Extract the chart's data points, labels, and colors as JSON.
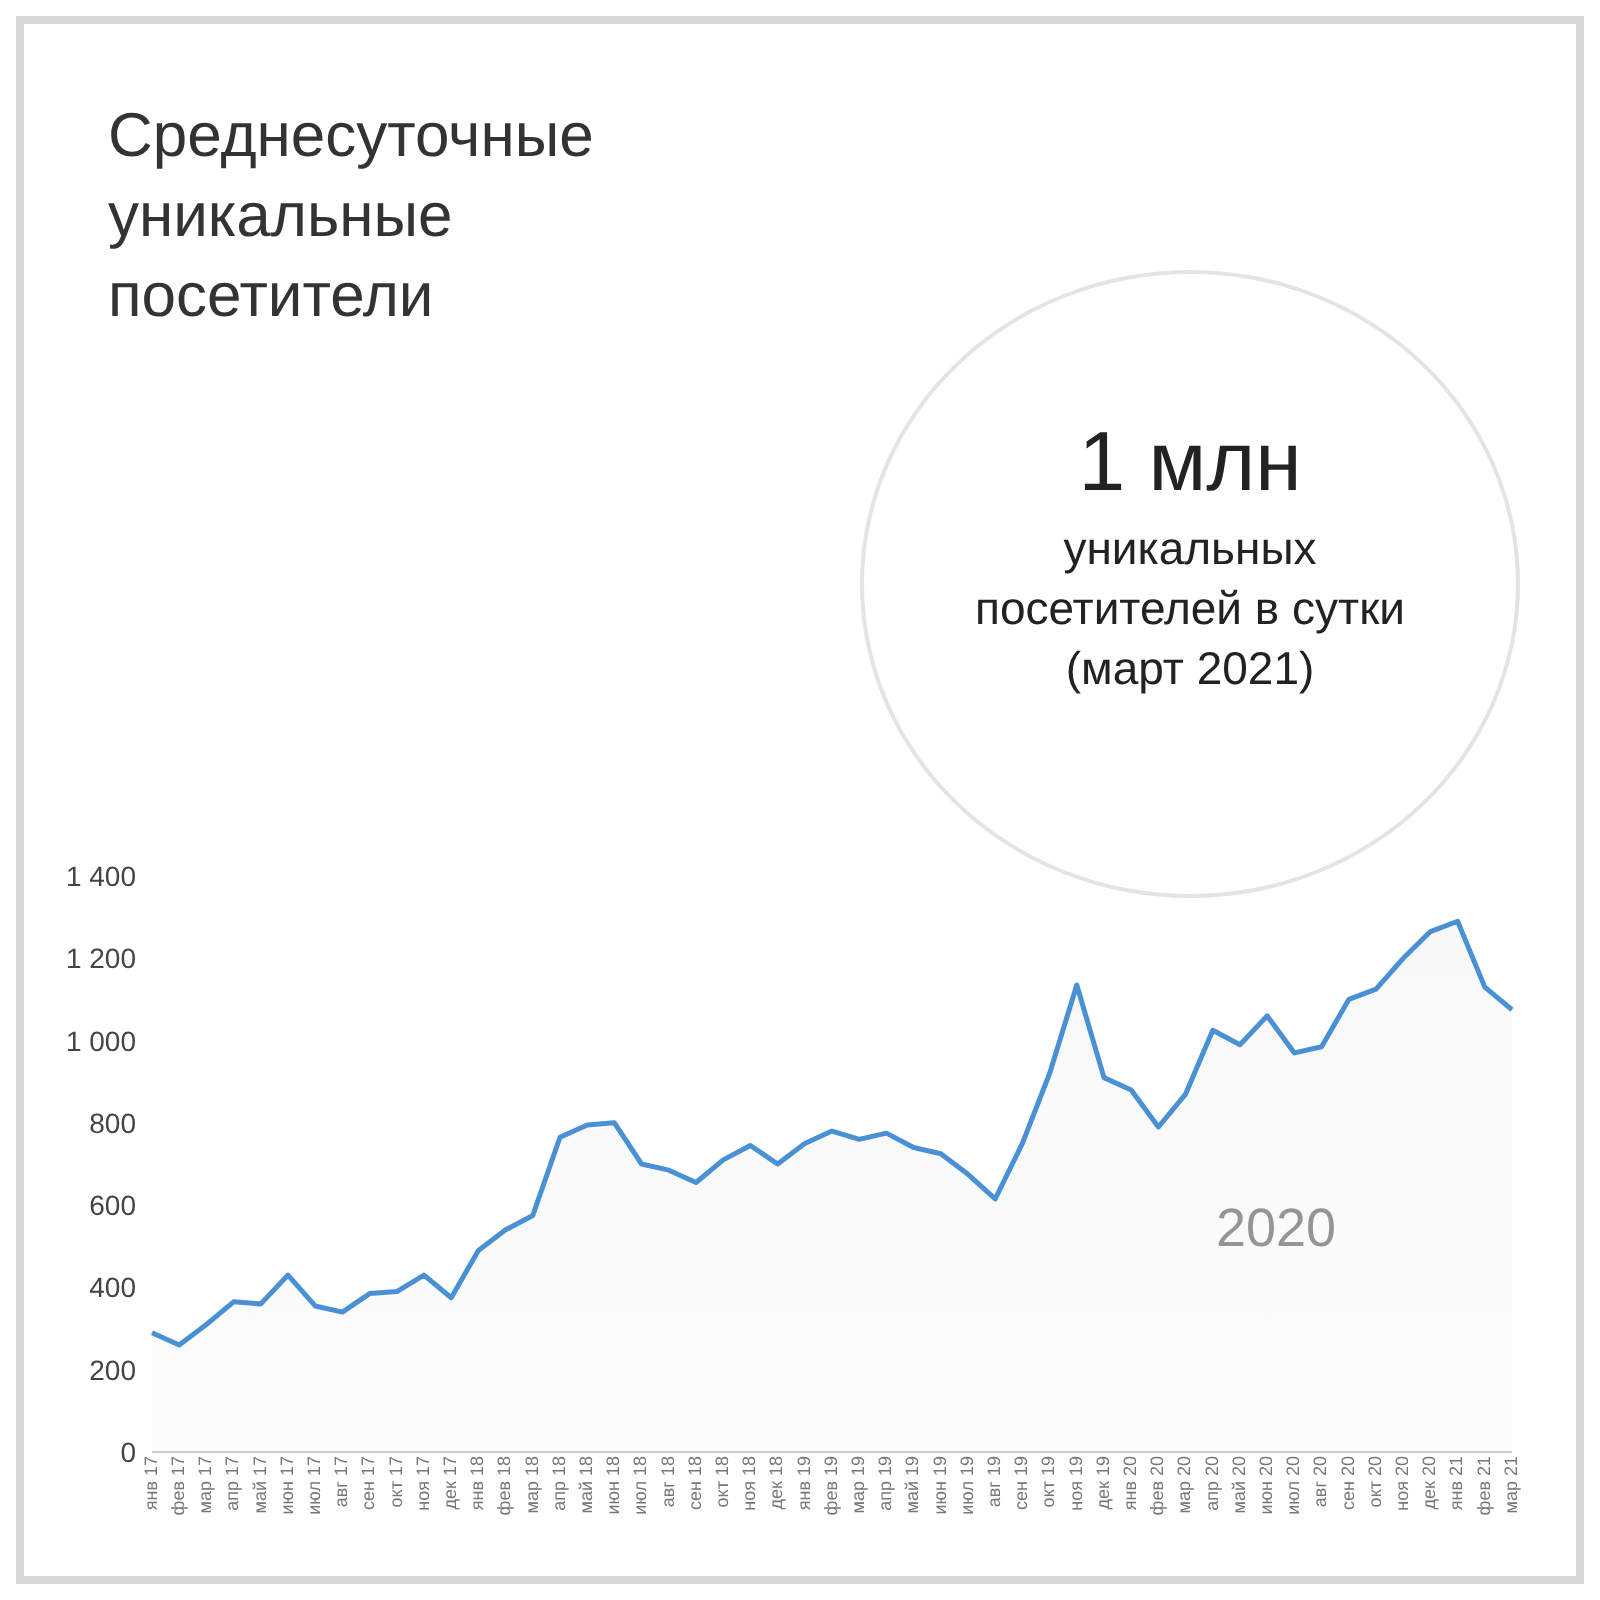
{
  "chart_data": {
    "type": "area",
    "title": "Среднесуточные уникальные посетители",
    "categories": [
      "янв 17",
      "фев 17",
      "мар 17",
      "апр 17",
      "май 17",
      "июн 17",
      "июл 17",
      "авг 17",
      "сен 17",
      "окт 17",
      "ноя 17",
      "дек 17",
      "янв 18",
      "фев 18",
      "мар 18",
      "апр 18",
      "май 18",
      "июн 18",
      "июл 18",
      "авг 18",
      "сен 18",
      "окт 18",
      "ноя 18",
      "дек 18",
      "янв 19",
      "фев 19",
      "мар 19",
      "апр 19",
      "май 19",
      "июн 19",
      "июл 19",
      "авг 19",
      "сен 19",
      "окт 19",
      "ноя 19",
      "дек 19",
      "янв 20",
      "фев 20",
      "мар 20",
      "апр 20",
      "май 20",
      "июн 20",
      "июл 20",
      "авг 20",
      "сен 20",
      "окт 20",
      "ноя 20",
      "дек 20",
      "янв 21",
      "фев 21",
      "мар 21"
    ],
    "series": [
      {
        "color": "#4a90d4",
        "values": [
          290,
          260,
          310,
          365,
          360,
          430,
          355,
          340,
          385,
          390,
          430,
          375,
          490,
          540,
          575,
          765,
          795,
          800,
          700,
          685,
          655,
          710,
          745,
          700,
          750,
          780,
          760,
          775,
          740,
          725,
          675,
          615,
          750,
          920,
          1135,
          910,
          880,
          790,
          870,
          1025,
          990,
          1060,
          970,
          985,
          1100,
          1125,
          1200,
          1265,
          1290,
          1130,
          1075
        ]
      }
    ],
    "ylim": [
      0,
      1400
    ],
    "yticks": [
      {
        "value": 0,
        "label": "0"
      },
      {
        "value": 200,
        "label": "200"
      },
      {
        "value": 400,
        "label": "400"
      },
      {
        "value": 600,
        "label": "600"
      },
      {
        "value": 800,
        "label": "800"
      },
      {
        "value": 1000,
        "label": "1 000"
      },
      {
        "value": 1200,
        "label": "1 200"
      },
      {
        "value": 1400,
        "label": "1 400"
      }
    ],
    "grid": false,
    "legend": false,
    "marker": "none",
    "annotations": [
      "1 млн",
      "уникальных",
      "посетителей в сутки",
      "(март 2021)",
      "2020"
    ]
  }
}
